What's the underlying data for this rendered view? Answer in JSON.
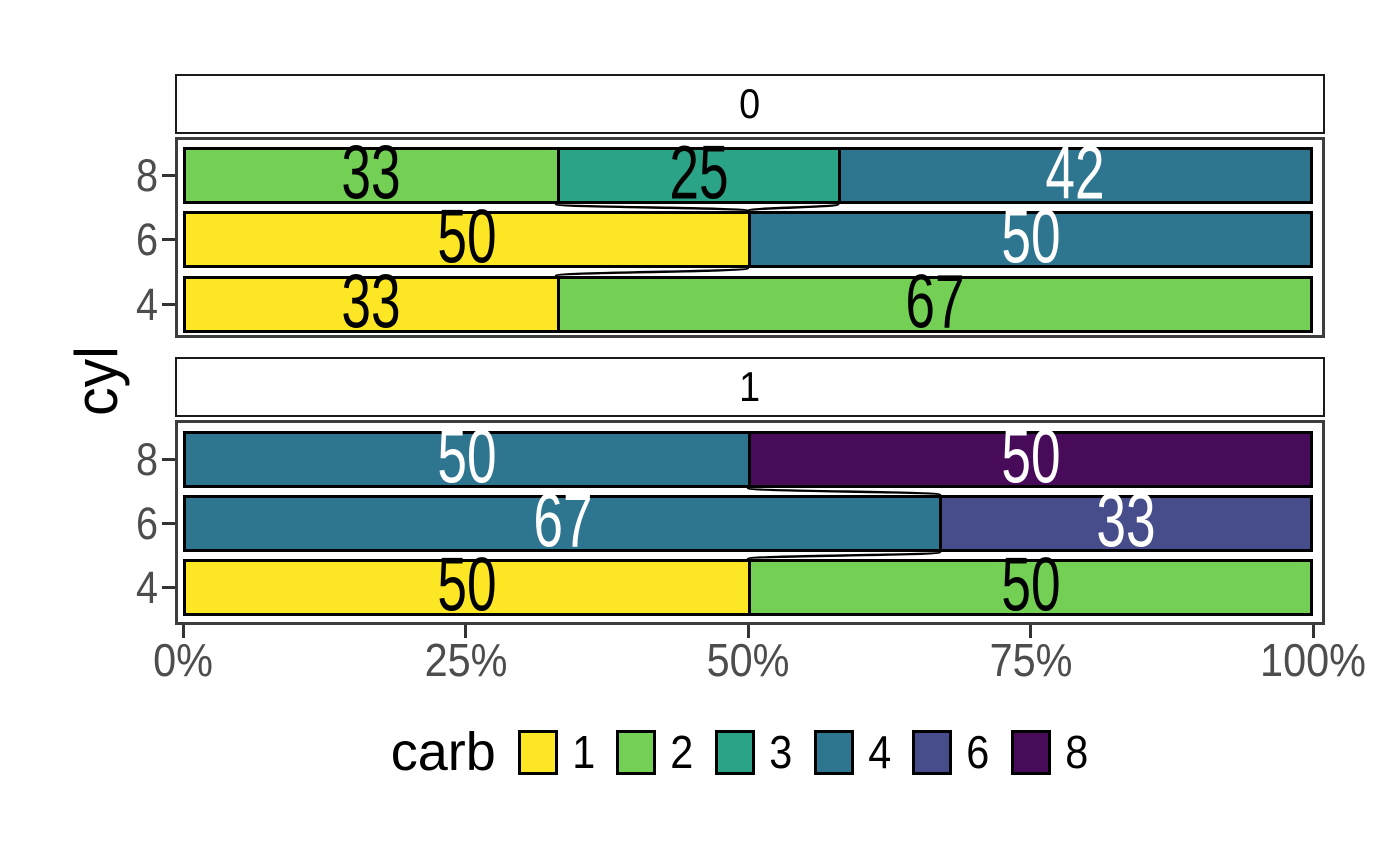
{
  "chart_data": {
    "type": "bar",
    "orientation": "horizontal",
    "stacking": "percent_fill",
    "title": "",
    "xlabel": "",
    "ylabel": "cyl",
    "x_axis_tick_labels": [
      "0%",
      "25%",
      "50%",
      "75%",
      "100%"
    ],
    "x_axis_tick_percents": [
      0,
      25,
      50,
      75,
      100
    ],
    "y_axis_tick_labels": [
      "8",
      "6",
      "4"
    ],
    "facet_labels": [
      "0",
      "1"
    ],
    "grid": "off",
    "legend_position": "bottom",
    "legend": {
      "title": "carb",
      "items": [
        {
          "label": "1",
          "color": "#FDE725"
        },
        {
          "label": "2",
          "color": "#73D055"
        },
        {
          "label": "3",
          "color": "#2AA386"
        },
        {
          "label": "4",
          "color": "#2E7590"
        },
        {
          "label": "6",
          "color": "#474D8B"
        },
        {
          "label": "8",
          "color": "#470B59"
        }
      ]
    },
    "colors": {
      "1": "#FDE725",
      "2": "#73D055",
      "3": "#2AA386",
      "4": "#2E7590",
      "6": "#474D8B",
      "8": "#470B59"
    },
    "axis_text_color": "#4D4D4D",
    "panel_border_color": "#3D3D3D",
    "facets": [
      {
        "label": "0",
        "rows": [
          {
            "cyl": "8",
            "segments": [
              {
                "carb": "2",
                "percent": 33,
                "label": "33",
                "label_color": "#000000"
              },
              {
                "carb": "3",
                "percent": 25,
                "label": "25",
                "label_color": "#000000"
              },
              {
                "carb": "4",
                "percent": 42,
                "label": "42",
                "label_color": "#FFFFFF"
              }
            ]
          },
          {
            "cyl": "6",
            "segments": [
              {
                "carb": "1",
                "percent": 50,
                "label": "50",
                "label_color": "#000000"
              },
              {
                "carb": "4",
                "percent": 50,
                "label": "50",
                "label_color": "#FFFFFF"
              }
            ]
          },
          {
            "cyl": "4",
            "segments": [
              {
                "carb": "1",
                "percent": 33,
                "label": "33",
                "label_color": "#000000"
              },
              {
                "carb": "2",
                "percent": 67,
                "label": "67",
                "label_color": "#000000"
              }
            ]
          }
        ]
      },
      {
        "label": "1",
        "rows": [
          {
            "cyl": "8",
            "segments": [
              {
                "carb": "4",
                "percent": 50,
                "label": "50",
                "label_color": "#FFFFFF"
              },
              {
                "carb": "8",
                "percent": 50,
                "label": "50",
                "label_color": "#FFFFFF"
              }
            ]
          },
          {
            "cyl": "6",
            "segments": [
              {
                "carb": "4",
                "percent": 67,
                "label": "67",
                "label_color": "#FFFFFF"
              },
              {
                "carb": "6",
                "percent": 33,
                "label": "33",
                "label_color": "#FFFFFF"
              }
            ]
          },
          {
            "cyl": "4",
            "segments": [
              {
                "carb": "1",
                "percent": 50,
                "label": "50",
                "label_color": "#000000"
              },
              {
                "carb": "2",
                "percent": 50,
                "label": "50",
                "label_color": "#000000"
              }
            ]
          }
        ]
      }
    ]
  }
}
